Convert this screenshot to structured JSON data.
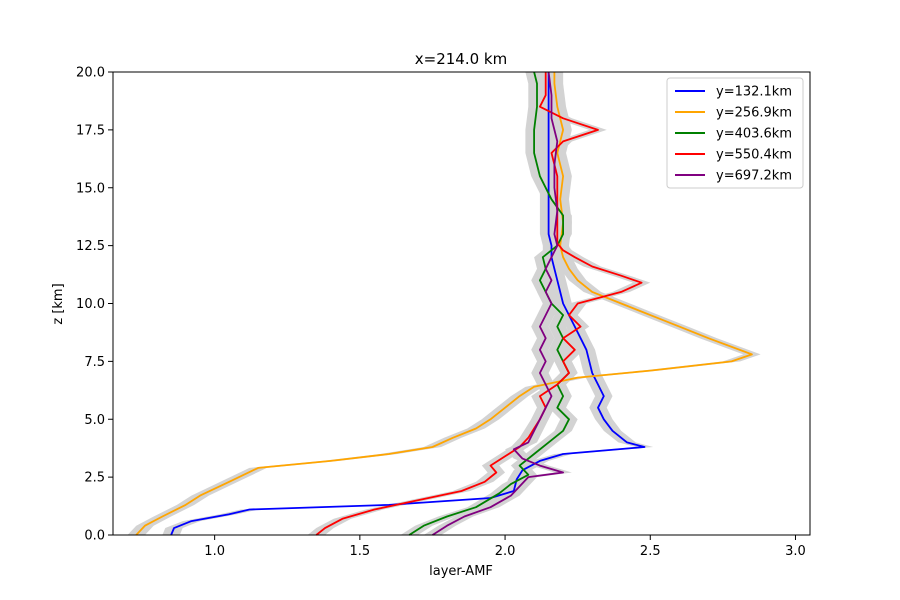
{
  "chart_data": {
    "type": "line",
    "title": "x=214.0 km",
    "xlabel": "layer-AMF",
    "ylabel": "z [km]",
    "xlim": [
      0.65,
      3.05
    ],
    "ylim": [
      0,
      20
    ],
    "xticks": [
      "1.0",
      "1.5",
      "2.0",
      "2.5",
      "3.0"
    ],
    "yticks": [
      "0.0",
      "2.5",
      "5.0",
      "7.5",
      "10.0",
      "12.5",
      "15.0",
      "17.5",
      "20.0"
    ],
    "grid": false,
    "legend_position": "top-right",
    "band_color": "#d3d3d3",
    "series": [
      {
        "name": "y=132.1km",
        "color": "#0000ff",
        "points": [
          [
            0.85,
            0.0
          ],
          [
            0.86,
            0.3
          ],
          [
            0.92,
            0.6
          ],
          [
            1.05,
            0.9
          ],
          [
            1.12,
            1.1
          ],
          [
            1.6,
            1.3
          ],
          [
            1.95,
            1.6
          ],
          [
            2.03,
            1.9
          ],
          [
            2.04,
            2.4
          ],
          [
            2.06,
            2.8
          ],
          [
            2.12,
            3.2
          ],
          [
            2.2,
            3.5
          ],
          [
            2.48,
            3.8
          ],
          [
            2.42,
            4.0
          ],
          [
            2.37,
            4.5
          ],
          [
            2.34,
            5.0
          ],
          [
            2.32,
            5.5
          ],
          [
            2.34,
            6.0
          ],
          [
            2.32,
            6.5
          ],
          [
            2.3,
            7.0
          ],
          [
            2.29,
            7.5
          ],
          [
            2.28,
            8.0
          ],
          [
            2.26,
            8.5
          ],
          [
            2.24,
            9.0
          ],
          [
            2.22,
            9.5
          ],
          [
            2.2,
            10.0
          ],
          [
            2.19,
            10.5
          ],
          [
            2.18,
            11.0
          ],
          [
            2.17,
            11.5
          ],
          [
            2.16,
            12.0
          ],
          [
            2.16,
            12.5
          ],
          [
            2.15,
            13.0
          ],
          [
            2.15,
            14.0
          ],
          [
            2.15,
            15.0
          ],
          [
            2.15,
            16.0
          ],
          [
            2.15,
            17.0
          ],
          [
            2.15,
            18.0
          ],
          [
            2.15,
            19.0
          ],
          [
            2.15,
            20.0
          ]
        ]
      },
      {
        "name": "y=256.9km",
        "color": "#ffa500",
        "points": [
          [
            0.73,
            0.0
          ],
          [
            0.76,
            0.4
          ],
          [
            0.82,
            0.8
          ],
          [
            0.9,
            1.3
          ],
          [
            0.95,
            1.7
          ],
          [
            1.05,
            2.3
          ],
          [
            1.15,
            2.9
          ],
          [
            1.4,
            3.2
          ],
          [
            1.6,
            3.5
          ],
          [
            1.75,
            3.8
          ],
          [
            1.82,
            4.2
          ],
          [
            1.9,
            4.6
          ],
          [
            1.95,
            5.0
          ],
          [
            2.0,
            5.5
          ],
          [
            2.05,
            6.0
          ],
          [
            2.1,
            6.4
          ],
          [
            2.25,
            6.8
          ],
          [
            2.5,
            7.1
          ],
          [
            2.78,
            7.5
          ],
          [
            2.85,
            7.8
          ],
          [
            2.7,
            8.5
          ],
          [
            2.6,
            9.0
          ],
          [
            2.5,
            9.5
          ],
          [
            2.4,
            10.0
          ],
          [
            2.3,
            10.5
          ],
          [
            2.25,
            11.0
          ],
          [
            2.22,
            11.5
          ],
          [
            2.2,
            12.0
          ],
          [
            2.19,
            12.5
          ],
          [
            2.2,
            13.5
          ],
          [
            2.19,
            14.5
          ],
          [
            2.2,
            15.5
          ],
          [
            2.18,
            16.5
          ],
          [
            2.2,
            17.5
          ],
          [
            2.18,
            18.5
          ],
          [
            2.17,
            19.5
          ],
          [
            2.17,
            20.0
          ]
        ]
      },
      {
        "name": "y=403.6km",
        "color": "#008000",
        "points": [
          [
            1.67,
            0.0
          ],
          [
            1.72,
            0.4
          ],
          [
            1.8,
            0.8
          ],
          [
            1.9,
            1.2
          ],
          [
            1.98,
            1.8
          ],
          [
            2.02,
            2.2
          ],
          [
            2.08,
            2.6
          ],
          [
            2.05,
            3.0
          ],
          [
            2.1,
            3.5
          ],
          [
            2.15,
            4.0
          ],
          [
            2.2,
            4.5
          ],
          [
            2.22,
            5.0
          ],
          [
            2.18,
            5.5
          ],
          [
            2.2,
            6.0
          ],
          [
            2.18,
            6.5
          ],
          [
            2.22,
            7.0
          ],
          [
            2.2,
            7.5
          ],
          [
            2.18,
            8.0
          ],
          [
            2.2,
            8.5
          ],
          [
            2.18,
            9.0
          ],
          [
            2.2,
            9.5
          ],
          [
            2.16,
            10.0
          ],
          [
            2.14,
            10.5
          ],
          [
            2.12,
            11.0
          ],
          [
            2.14,
            11.5
          ],
          [
            2.13,
            12.0
          ],
          [
            2.18,
            12.5
          ],
          [
            2.2,
            13.0
          ],
          [
            2.2,
            13.8
          ],
          [
            2.16,
            14.5
          ],
          [
            2.12,
            15.5
          ],
          [
            2.1,
            16.5
          ],
          [
            2.1,
            17.5
          ],
          [
            2.11,
            18.5
          ],
          [
            2.11,
            19.5
          ],
          [
            2.1,
            20.0
          ]
        ]
      },
      {
        "name": "y=550.4km",
        "color": "#ff0000",
        "points": [
          [
            1.35,
            0.0
          ],
          [
            1.38,
            0.3
          ],
          [
            1.44,
            0.7
          ],
          [
            1.55,
            1.1
          ],
          [
            1.7,
            1.5
          ],
          [
            1.85,
            1.9
          ],
          [
            1.93,
            2.3
          ],
          [
            1.97,
            2.7
          ],
          [
            1.95,
            3.0
          ],
          [
            2.0,
            3.4
          ],
          [
            2.05,
            3.8
          ],
          [
            2.08,
            4.2
          ],
          [
            2.1,
            4.6
          ],
          [
            2.12,
            5.0
          ],
          [
            2.14,
            5.5
          ],
          [
            2.12,
            6.0
          ],
          [
            2.18,
            6.5
          ],
          [
            2.22,
            7.0
          ],
          [
            2.2,
            7.5
          ],
          [
            2.24,
            8.0
          ],
          [
            2.2,
            8.5
          ],
          [
            2.26,
            9.0
          ],
          [
            2.22,
            9.5
          ],
          [
            2.25,
            10.0
          ],
          [
            2.4,
            10.5
          ],
          [
            2.47,
            10.9
          ],
          [
            2.4,
            11.2
          ],
          [
            2.3,
            11.6
          ],
          [
            2.24,
            12.0
          ],
          [
            2.2,
            12.3
          ],
          [
            2.18,
            12.6
          ],
          [
            2.18,
            13.5
          ],
          [
            2.18,
            14.5
          ],
          [
            2.18,
            15.5
          ],
          [
            2.16,
            16.5
          ],
          [
            2.2,
            17.0
          ],
          [
            2.32,
            17.5
          ],
          [
            2.2,
            18.0
          ],
          [
            2.12,
            18.5
          ],
          [
            2.14,
            19.0
          ],
          [
            2.14,
            19.5
          ],
          [
            2.14,
            20.0
          ]
        ]
      },
      {
        "name": "y=697.2km",
        "color": "#800080",
        "points": [
          [
            1.75,
            0.0
          ],
          [
            1.8,
            0.4
          ],
          [
            1.86,
            0.8
          ],
          [
            1.95,
            1.2
          ],
          [
            2.02,
            1.7
          ],
          [
            2.05,
            2.1
          ],
          [
            2.08,
            2.5
          ],
          [
            2.2,
            2.7
          ],
          [
            2.12,
            3.0
          ],
          [
            2.06,
            3.3
          ],
          [
            2.03,
            3.7
          ],
          [
            2.08,
            4.0
          ],
          [
            2.1,
            4.5
          ],
          [
            2.12,
            5.0
          ],
          [
            2.14,
            5.5
          ],
          [
            2.16,
            6.0
          ],
          [
            2.14,
            6.5
          ],
          [
            2.12,
            7.0
          ],
          [
            2.14,
            7.5
          ],
          [
            2.12,
            8.0
          ],
          [
            2.14,
            8.5
          ],
          [
            2.12,
            9.0
          ],
          [
            2.14,
            9.5
          ],
          [
            2.16,
            10.0
          ],
          [
            2.14,
            10.5
          ],
          [
            2.16,
            11.0
          ],
          [
            2.14,
            11.5
          ],
          [
            2.16,
            12.0
          ],
          [
            2.18,
            12.5
          ],
          [
            2.17,
            13.0
          ],
          [
            2.18,
            14.0
          ],
          [
            2.17,
            15.0
          ],
          [
            2.17,
            16.0
          ],
          [
            2.18,
            17.0
          ],
          [
            2.16,
            18.0
          ],
          [
            2.16,
            19.0
          ],
          [
            2.15,
            20.0
          ]
        ]
      }
    ]
  }
}
